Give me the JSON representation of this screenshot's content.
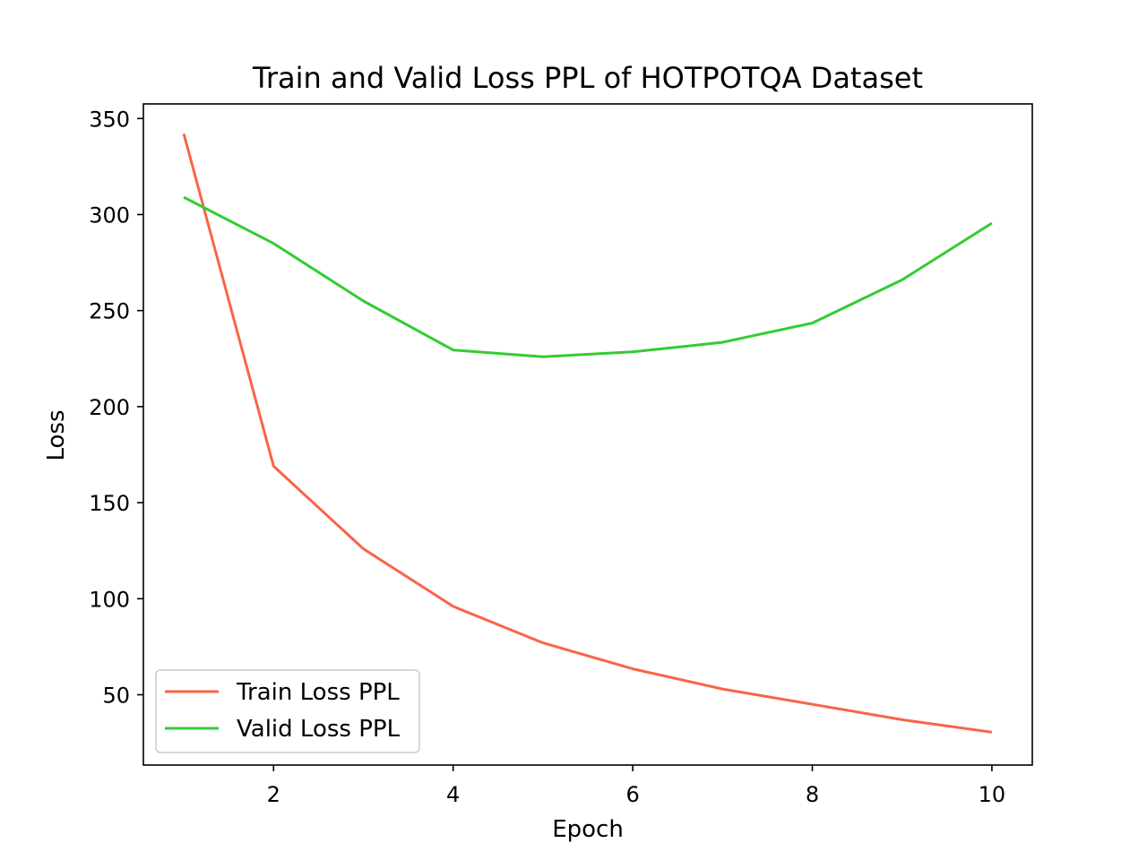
{
  "chart_data": {
    "type": "line",
    "title": "Train and Valid Loss PPL of HOTPOTQA Dataset",
    "xlabel": "Epoch",
    "ylabel": "Loss",
    "xlim": [
      0.55,
      10.45
    ],
    "ylim": [
      13.4,
      357.6
    ],
    "xticks": [
      2,
      4,
      6,
      8,
      10
    ],
    "yticks": [
      50,
      100,
      150,
      200,
      250,
      300,
      350
    ],
    "grid": false,
    "legend_position": "lower-left",
    "x": [
      1,
      2,
      3,
      4,
      5,
      6,
      7,
      8,
      9,
      10
    ],
    "series": [
      {
        "name": "Train Loss PPL",
        "color": "#f96447",
        "values": [
          342,
          169,
          126,
          96,
          77,
          63.5,
          53,
          45,
          37,
          30.5
        ]
      },
      {
        "name": "Valid Loss PPL",
        "color": "#33cc33",
        "values": [
          309,
          285,
          255,
          229.5,
          226,
          228.5,
          233.5,
          243.5,
          266,
          295.5
        ]
      }
    ]
  }
}
